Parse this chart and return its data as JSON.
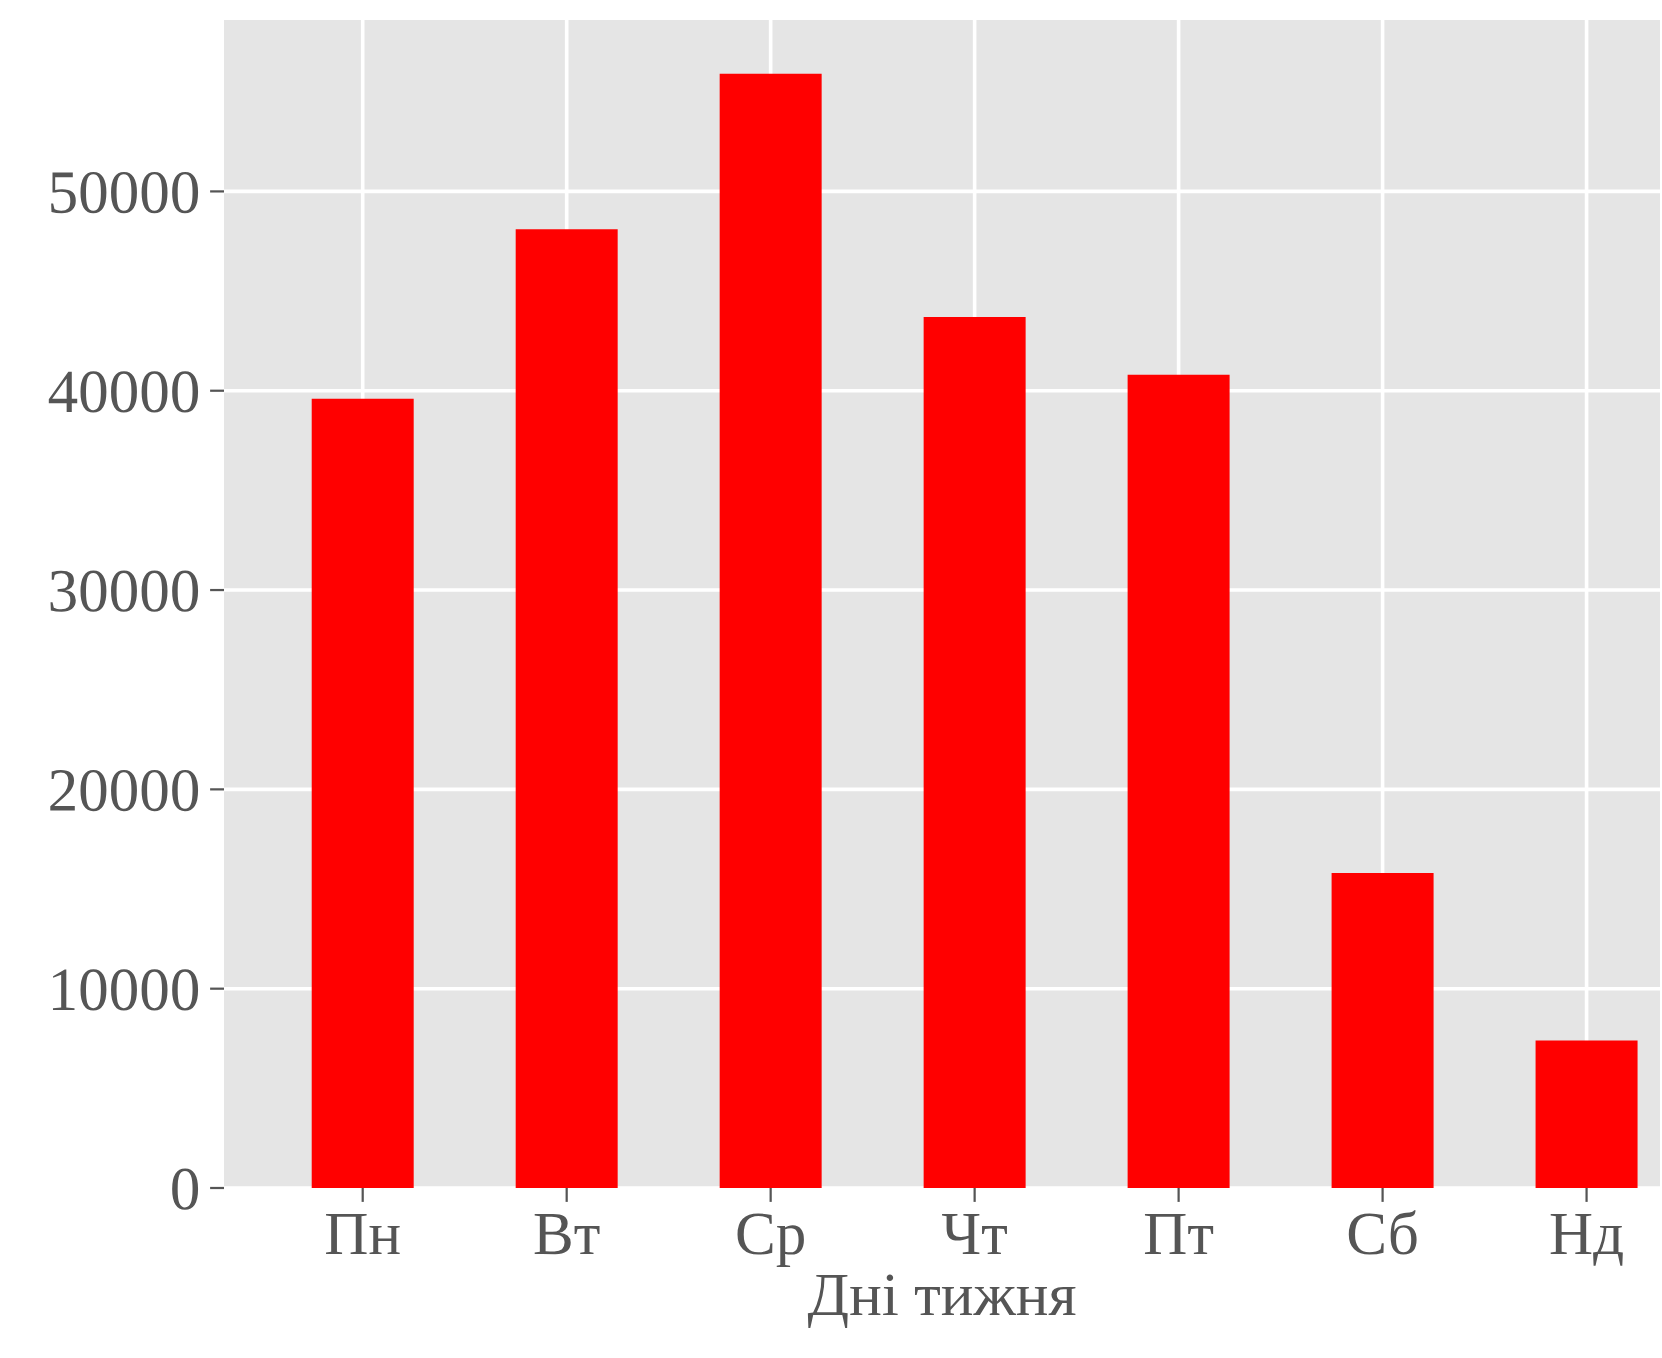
{
  "chart_data": {
    "type": "bar",
    "xlabel": "Дні тижня",
    "categories": [
      "Пн",
      "Вт",
      "Ср",
      "Чт",
      "Пт",
      "Сб",
      "Нд"
    ],
    "values": [
      39600,
      48100,
      55900,
      43700,
      40800,
      15800,
      7400
    ],
    "color": "#ff0000",
    "ylim": [
      0,
      58600
    ],
    "yticks": [
      0,
      10000,
      20000,
      30000,
      40000,
      50000
    ],
    "grid": true,
    "legend": false
  }
}
